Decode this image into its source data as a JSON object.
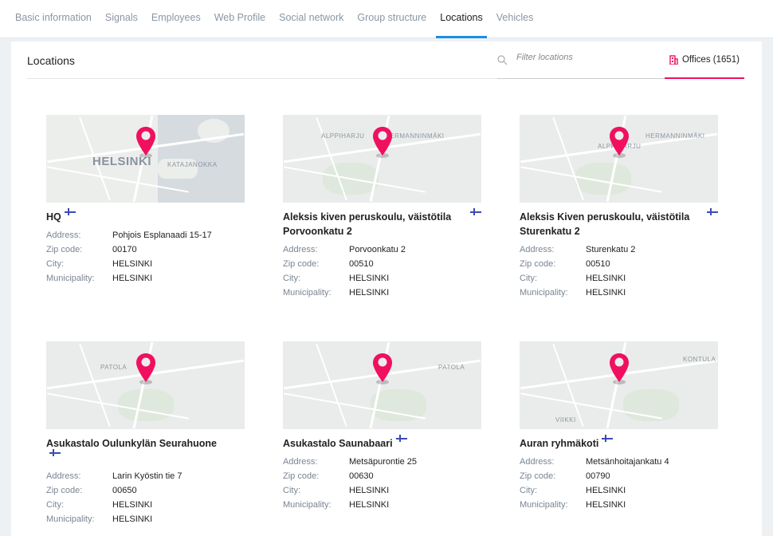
{
  "tabs": [
    {
      "label": "Basic information"
    },
    {
      "label": "Signals"
    },
    {
      "label": "Employees"
    },
    {
      "label": "Web Profile"
    },
    {
      "label": "Social network"
    },
    {
      "label": "Group structure"
    },
    {
      "label": "Locations",
      "active": true
    },
    {
      "label": "Vehicles"
    }
  ],
  "header": {
    "title": "Locations",
    "search_placeholder": "Filter locations",
    "offices_label": "Offices (1651)"
  },
  "colors": {
    "accent": "#f0105f",
    "tab_active": "#1a8fe0"
  },
  "field_labels": {
    "address": "Address:",
    "zip": "Zip code:",
    "city": "City:",
    "municipality": "Municipality:"
  },
  "locations": [
    {
      "name": "HQ",
      "address": "Pohjois Esplanaadi 15-17",
      "zip": "00170",
      "city": "HELSINKI",
      "municipality": "HELSINKI",
      "map_labels": [
        "HELSINKI",
        "KATAJANOKKA"
      ]
    },
    {
      "name": "Aleksis kiven peruskoulu, väistötila Porvoonkatu 2",
      "address": "Porvoonkatu 2",
      "zip": "00510",
      "city": "HELSINKI",
      "municipality": "HELSINKI",
      "map_labels": [
        "ALPPIHARJU",
        "HERMANNINMÄKI"
      ]
    },
    {
      "name": "Aleksis Kiven peruskoulu, väistötila Sturenkatu 2",
      "address": "Sturenkatu 2",
      "zip": "00510",
      "city": "HELSINKI",
      "municipality": "HELSINKI",
      "map_labels": [
        "ALPPIHARJU",
        "HERMANNINMÄKI"
      ]
    },
    {
      "name": "Asukastalo Oulunkylän Seurahuone",
      "address": "Larin Kyöstin tie 7",
      "zip": "00650",
      "city": "HELSINKI",
      "municipality": "HELSINKI",
      "map_labels": [
        "PATOLA"
      ]
    },
    {
      "name": "Asukastalo Saunabaari",
      "address": "Metsäpurontie 25",
      "zip": "00630",
      "city": "HELSINKI",
      "municipality": "HELSINKI",
      "map_labels": [
        "PATOLA"
      ]
    },
    {
      "name": "Auran ryhmäkoti",
      "address": "Metsänhoitajankatu 4",
      "zip": "00790",
      "city": "HELSINKI",
      "municipality": "HELSINKI",
      "map_labels": [
        "KONTULA",
        "VIIKKI"
      ]
    }
  ]
}
